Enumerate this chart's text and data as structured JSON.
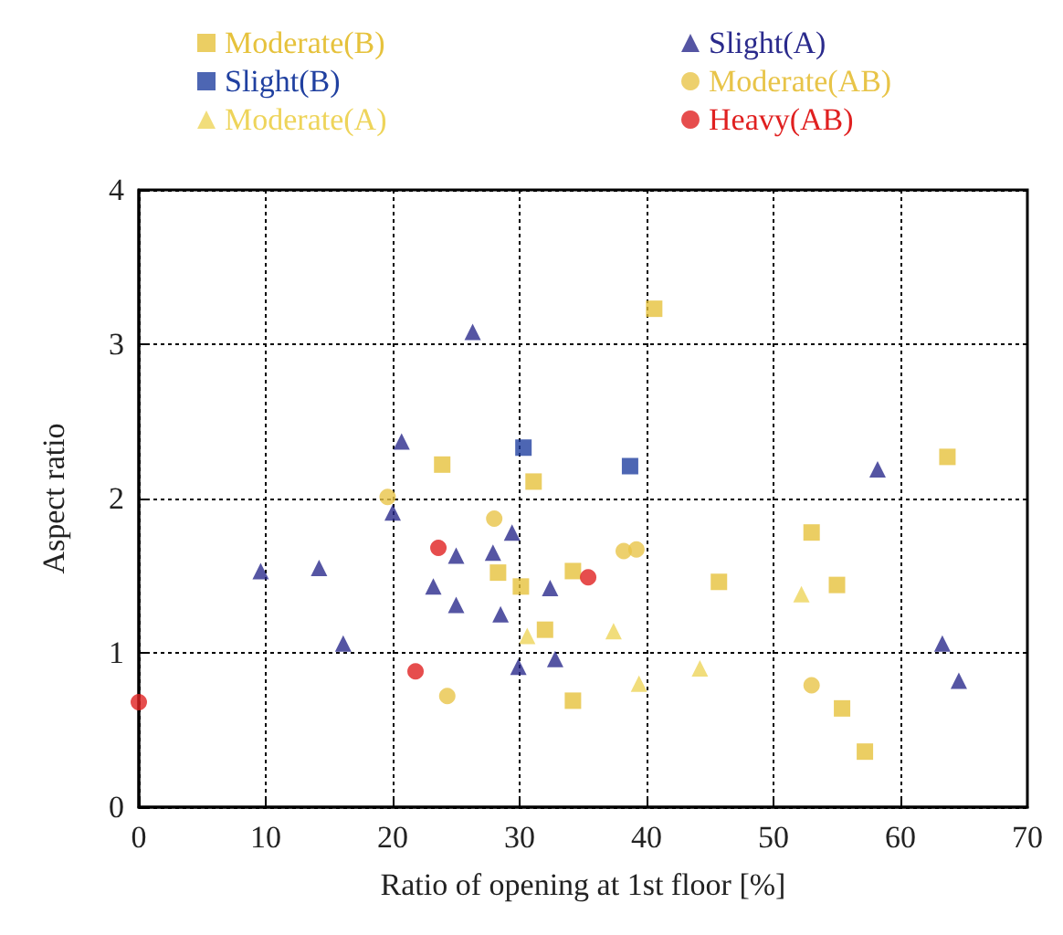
{
  "chart_data": {
    "type": "scatter",
    "xlabel": "Ratio of opening at 1st floor [%]",
    "ylabel": "Aspect ratio",
    "xlim": [
      0,
      70
    ],
    "xticks": [
      0,
      10,
      20,
      30,
      40,
      50,
      60,
      70
    ],
    "ylim": [
      0,
      4
    ],
    "yticks": [
      0,
      1,
      2,
      3,
      4
    ],
    "grid": true,
    "legend": "top",
    "series": [
      {
        "name": "Moderate(B)",
        "color": "#e6c23c",
        "marker": "square",
        "x": [
          23.9,
          31.1,
          28.3,
          30.1,
          34.2,
          34.2,
          40.6,
          45.7,
          63.7,
          53,
          55,
          55.4,
          57.2,
          32
        ],
        "values": [
          2.22,
          2.11,
          1.52,
          1.43,
          1.53,
          0.69,
          3.23,
          1.46,
          2.27,
          1.78,
          1.44,
          0.64,
          0.36,
          1.15
        ]
      },
      {
        "name": "Slight(B)",
        "color": "#2040a0",
        "marker": "square",
        "x": [
          30.3,
          38.7
        ],
        "values": [
          2.33,
          2.21
        ]
      },
      {
        "name": "Moderate(A)",
        "color": "#eed45a",
        "marker": "triangle",
        "x": [
          30.6,
          37.4,
          39.4,
          44.2,
          52.2
        ],
        "values": [
          1.11,
          1.14,
          0.8,
          0.9,
          1.38
        ]
      },
      {
        "name": "Slight(A)",
        "color": "#2a2a8c",
        "marker": "triangle",
        "x": [
          9.6,
          14.2,
          16.1,
          20.7,
          20,
          23.2,
          25,
          25,
          26.3,
          27.9,
          28.5,
          29.4,
          29.9,
          32.4,
          32.8,
          58.2,
          63.3,
          64.6
        ],
        "values": [
          1.53,
          1.55,
          1.06,
          2.37,
          1.91,
          1.43,
          1.63,
          1.31,
          3.08,
          1.65,
          1.25,
          1.78,
          0.91,
          1.42,
          0.96,
          2.19,
          1.06,
          0.82
        ]
      },
      {
        "name": "Moderate(AB)",
        "color": "#e8c448",
        "marker": "circle",
        "x": [
          19.6,
          24.3,
          28,
          38.2,
          39.2,
          53
        ],
        "values": [
          2.01,
          0.72,
          1.87,
          1.66,
          1.67,
          0.79
        ]
      },
      {
        "name": "Heavy(AB)",
        "color": "#e02020",
        "marker": "circle",
        "x": [
          0,
          23.6,
          21.8,
          35.4
        ],
        "values": [
          0.68,
          1.68,
          0.88,
          1.49
        ]
      }
    ]
  }
}
